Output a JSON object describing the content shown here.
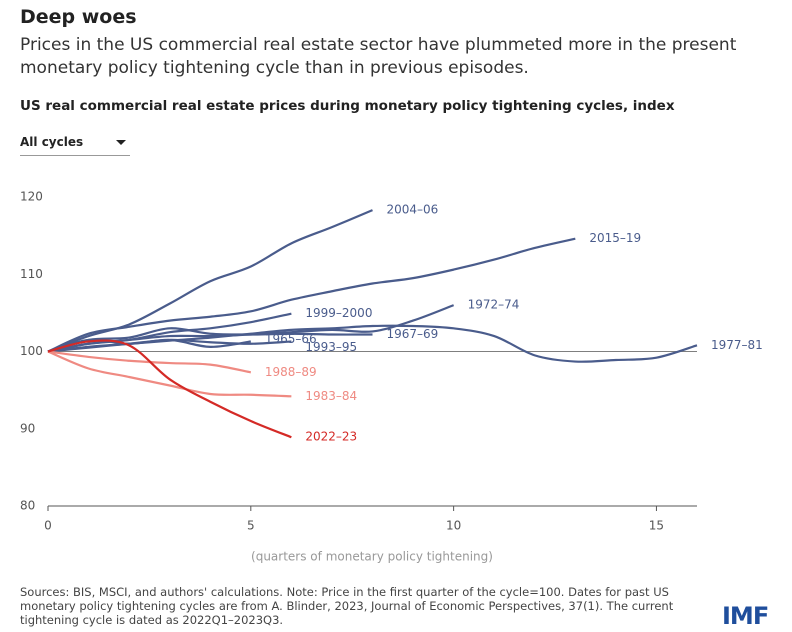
{
  "title": "Deep woes",
  "subtitle": "Prices in the US commercial real estate sector have plummeted more in the present monetary policy tightening cycle than in previous episodes.",
  "filter": "All cycles",
  "source": "Sources: BIS, MSCI, and authors' calculations. Note: Price in the first quarter of the cycle=100. Dates for past US monetary policy tightening cycles are from A. Blinder, 2023, Journal of Economic Perspectives, 37(1). The current tightening cycle is dated as 2022Q1–2023Q3.",
  "logo": "IMF",
  "chart_data": {
    "type": "line",
    "title": "US real commercial real estate prices during monetary policy tightening cycles, index",
    "x_label": "(quarters of monetary policy tightening)",
    "x": [
      0,
      1,
      2,
      3,
      4,
      5,
      6,
      7,
      8,
      9,
      10,
      11,
      12,
      13,
      14,
      15,
      16
    ],
    "xlim": [
      0,
      16
    ],
    "xticks": [
      0,
      5,
      10,
      15
    ],
    "ylim": [
      80,
      120
    ],
    "yticks": [
      80,
      90,
      100,
      110,
      120
    ],
    "reference_line": 100,
    "grid": false,
    "series": [
      {
        "name": "2004–06",
        "color": "#4a5c8c",
        "values": [
          100,
          102,
          103.5,
          106.2,
          109.1,
          111,
          114,
          116.1,
          118.3,
          null,
          null,
          null,
          null,
          null,
          null,
          null,
          null
        ]
      },
      {
        "name": "2015–19",
        "color": "#4a5c8c",
        "values": [
          100,
          102.3,
          103.2,
          104,
          104.5,
          105.2,
          106.7,
          107.8,
          108.8,
          109.5,
          110.6,
          111.9,
          113.4,
          114.6,
          null,
          null,
          null
        ]
      },
      {
        "name": "1999–2000",
        "color": "#4a5c8c",
        "values": [
          100,
          101,
          101.5,
          102.5,
          103,
          103.8,
          104.9,
          null,
          null,
          null,
          null,
          null,
          null,
          null,
          null,
          null,
          null
        ]
      },
      {
        "name": "1972–74",
        "color": "#4a5c8c",
        "values": [
          100,
          101,
          101.5,
          102,
          102,
          102.2,
          102.5,
          102.8,
          102.6,
          104,
          106,
          null,
          null,
          null,
          null,
          null,
          null
        ]
      },
      {
        "name": "1967–69",
        "color": "#4a5c8c",
        "values": [
          100,
          101.5,
          101.8,
          103,
          102.3,
          102.2,
          102.3,
          102.2,
          102.2,
          null,
          null,
          null,
          null,
          null,
          null,
          null,
          null
        ]
      },
      {
        "name": "1977–81",
        "color": "#4a5c8c",
        "values": [
          100,
          100.6,
          101,
          101.4,
          101.8,
          102.3,
          102.8,
          103,
          103.3,
          103.3,
          103,
          102,
          99.5,
          98.7,
          98.9,
          99.2,
          100.8
        ]
      },
      {
        "name": "1965–66",
        "color": "#4a5c8c",
        "values": [
          100,
          101.5,
          101,
          101.5,
          100.6,
          101.3,
          null,
          null,
          null,
          null,
          null,
          null,
          null,
          null,
          null,
          null,
          null
        ]
      },
      {
        "name": "1993–95",
        "color": "#4a5c8c",
        "values": [
          100,
          100.5,
          101,
          101.5,
          101.2,
          101,
          101.3,
          null,
          null,
          null,
          null,
          null,
          null,
          null,
          null,
          null,
          null
        ]
      },
      {
        "name": "1988–89",
        "color": "#ef8a82",
        "values": [
          100,
          99.3,
          98.8,
          98.5,
          98.3,
          97.3,
          null,
          null,
          null,
          null,
          null,
          null,
          null,
          null,
          null,
          null,
          null
        ]
      },
      {
        "name": "1983–84",
        "color": "#ef8a82",
        "values": [
          100,
          97.8,
          96.7,
          95.6,
          94.5,
          94.4,
          94.2,
          null,
          null,
          null,
          null,
          null,
          null,
          null,
          null,
          null,
          null
        ]
      },
      {
        "name": "2022–23",
        "color": "#d42a26",
        "values": [
          100,
          101.3,
          100.8,
          96.4,
          93.5,
          91,
          88.9,
          null,
          null,
          null,
          null,
          null,
          null,
          null,
          null,
          null,
          null
        ]
      }
    ]
  }
}
